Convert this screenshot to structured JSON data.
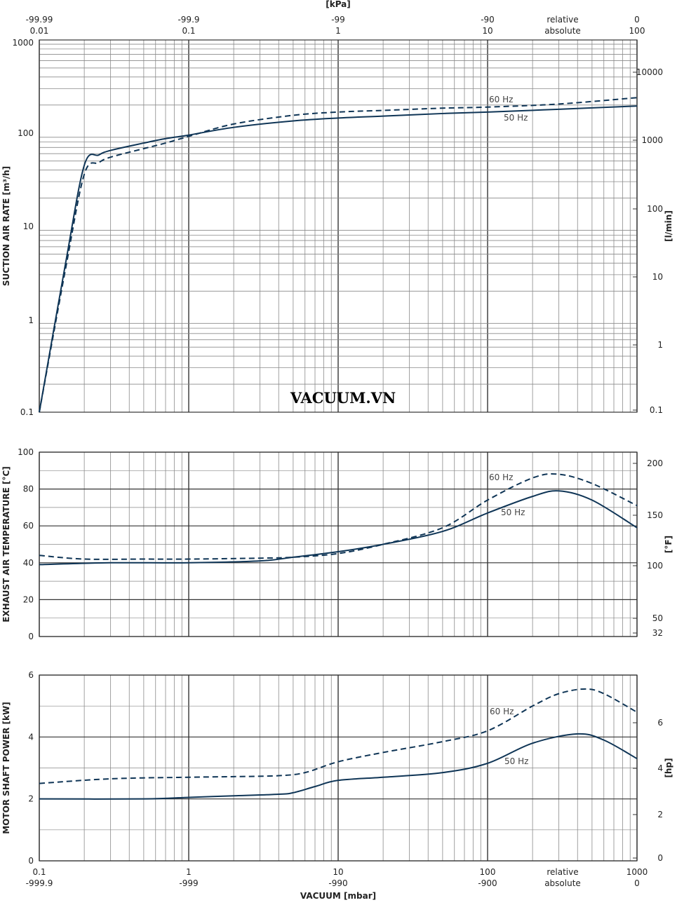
{
  "watermark": "VACUUM.VN",
  "colors": {
    "series": "#0f3556",
    "grid_major": "#333333",
    "grid_minor": "#8a8a8a"
  },
  "top_axis": {
    "title": "[kPa]",
    "ticks": [
      {
        "x": 0.01,
        "relative": "-99.99",
        "absolute": "0.01"
      },
      {
        "x": 0.1,
        "relative": "-99.9",
        "absolute": "0.1"
      },
      {
        "x": 1,
        "relative": "-99",
        "absolute": "1"
      },
      {
        "x": 10,
        "relative": "-90",
        "absolute": "10"
      },
      {
        "x": 100,
        "relative": "0",
        "absolute": "100"
      }
    ],
    "relative_label": "relative",
    "absolute_label": "absolute"
  },
  "bottom_axis": {
    "title": "VACUUM [mbar]",
    "ticks": [
      {
        "x": 0.1,
        "absolute": "0.1",
        "relative": "-999.9"
      },
      {
        "x": 1,
        "absolute": "1",
        "relative": "-999"
      },
      {
        "x": 10,
        "absolute": "10",
        "relative": "-990"
      },
      {
        "x": 100,
        "absolute": "100",
        "relative": "-900"
      },
      {
        "x": 1000,
        "absolute": "1000",
        "relative": "0"
      }
    ],
    "relative_label": "relative",
    "absolute_label": "absolute"
  },
  "chart_data": [
    {
      "type": "line",
      "x_scale": "log",
      "xlim": [
        0.1,
        1000
      ],
      "ylim": [
        0.1,
        1000
      ],
      "y_scale": "log",
      "ylabel": "SUCTION AIR RATE [m³/h]",
      "y_ticks": [
        "0.1",
        "1",
        "10",
        "100",
        "1000"
      ],
      "y2label": "[l/min]",
      "y2_ticks": [
        "0.1",
        "1",
        "10",
        "100",
        "1000",
        "10000"
      ],
      "series": [
        {
          "name": "50 Hz",
          "style": "solid",
          "x": [
            0.1,
            0.15,
            0.2,
            0.25,
            0.3,
            0.5,
            0.7,
            1,
            2,
            5,
            10,
            20,
            50,
            100,
            300,
            1000
          ],
          "y": [
            0.1,
            4,
            45,
            58,
            65,
            78,
            87,
            95,
            115,
            135,
            145,
            152,
            162,
            168,
            180,
            195
          ]
        },
        {
          "name": "60 Hz",
          "style": "dashed",
          "x": [
            0.1,
            0.15,
            0.2,
            0.25,
            0.3,
            0.5,
            0.7,
            1,
            2,
            5,
            10,
            20,
            50,
            100,
            300,
            1000
          ],
          "y": [
            0.1,
            3.5,
            36,
            48,
            55,
            68,
            78,
            92,
            125,
            155,
            168,
            175,
            185,
            190,
            205,
            240
          ]
        }
      ]
    },
    {
      "type": "line",
      "x_scale": "log",
      "xlim": [
        0.1,
        1000
      ],
      "ylim": [
        0,
        100
      ],
      "ylabel": "EXHAUST AIR TEMPERATURE [°C]",
      "y_ticks": [
        "0",
        "20",
        "40",
        "60",
        "80",
        "100"
      ],
      "y2label": "[°F]",
      "y2_ticks": [
        "32",
        "50",
        "100",
        "150",
        "200"
      ],
      "series": [
        {
          "name": "50 Hz",
          "style": "solid",
          "x": [
            0.1,
            0.3,
            1,
            3,
            5,
            10,
            20,
            50,
            100,
            200,
            300,
            500,
            1000
          ],
          "y": [
            39,
            40,
            40,
            41,
            43,
            46,
            50,
            57,
            67,
            76,
            79,
            74,
            59
          ]
        },
        {
          "name": "60 Hz",
          "style": "dashed",
          "x": [
            0.1,
            0.2,
            0.5,
            1,
            3,
            5,
            10,
            20,
            50,
            100,
            200,
            300,
            500,
            1000
          ],
          "y": [
            44,
            42,
            42,
            42,
            42.5,
            43,
            45,
            50,
            59,
            74,
            86,
            88,
            83,
            71
          ]
        }
      ]
    },
    {
      "type": "line",
      "x_scale": "log",
      "xlim": [
        0.1,
        1000
      ],
      "ylim": [
        0,
        6
      ],
      "ylabel": "MOTOR SHAFT POWER [kW]",
      "y_ticks": [
        "0",
        "2",
        "4",
        "6"
      ],
      "y2label": "[hp]",
      "y2_ticks": [
        "0",
        "2",
        "4",
        "6"
      ],
      "series": [
        {
          "name": "50 Hz",
          "style": "solid",
          "x": [
            0.1,
            0.5,
            1,
            2,
            4,
            5,
            7,
            10,
            20,
            50,
            100,
            200,
            400,
            600,
            1000
          ],
          "y": [
            2,
            2,
            2.05,
            2.1,
            2.15,
            2.2,
            2.4,
            2.6,
            2.7,
            2.85,
            3.15,
            3.8,
            4.1,
            3.9,
            3.3
          ]
        },
        {
          "name": "60 Hz",
          "style": "dashed",
          "x": [
            0.1,
            0.3,
            1,
            2,
            4,
            6,
            10,
            20,
            50,
            100,
            200,
            300,
            450,
            600,
            1000
          ],
          "y": [
            2.5,
            2.65,
            2.7,
            2.72,
            2.75,
            2.85,
            3.2,
            3.5,
            3.85,
            4.2,
            5,
            5.4,
            5.55,
            5.4,
            4.8
          ]
        }
      ]
    }
  ]
}
